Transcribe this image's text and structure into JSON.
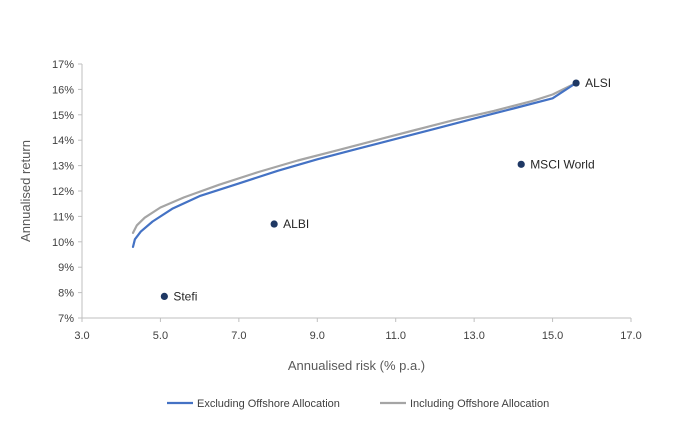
{
  "chart_data": {
    "type": "line",
    "title": "",
    "xlabel": "Annualised risk (% p.a.)",
    "ylabel": "Annualised return",
    "xlim": [
      3.0,
      17.0
    ],
    "ylim": [
      7,
      17
    ],
    "x_ticks": [
      "3.0",
      "5.0",
      "7.0",
      "9.0",
      "11.0",
      "13.0",
      "15.0",
      "17.0"
    ],
    "y_ticks": [
      "7%",
      "8%",
      "9%",
      "10%",
      "11%",
      "12%",
      "13%",
      "14%",
      "15%",
      "16%",
      "17%"
    ],
    "grid": false,
    "legend_position": "bottom",
    "series": [
      {
        "name": "Excluding Offshore Allocation",
        "color": "#4472C4",
        "points": [
          [
            4.3,
            9.8
          ],
          [
            4.35,
            10.1
          ],
          [
            4.5,
            10.4
          ],
          [
            4.8,
            10.8
          ],
          [
            5.3,
            11.3
          ],
          [
            6.0,
            11.8
          ],
          [
            7.0,
            12.3
          ],
          [
            8.0,
            12.8
          ],
          [
            9.0,
            13.25
          ],
          [
            10.0,
            13.65
          ],
          [
            11.0,
            14.05
          ],
          [
            12.0,
            14.45
          ],
          [
            13.0,
            14.85
          ],
          [
            14.0,
            15.25
          ],
          [
            15.0,
            15.65
          ],
          [
            15.6,
            16.25
          ]
        ]
      },
      {
        "name": "Including Offshore Allocation",
        "color": "#A5A5A5",
        "points": [
          [
            4.3,
            10.35
          ],
          [
            4.4,
            10.65
          ],
          [
            4.6,
            10.95
          ],
          [
            5.0,
            11.35
          ],
          [
            5.6,
            11.75
          ],
          [
            6.5,
            12.25
          ],
          [
            7.5,
            12.75
          ],
          [
            8.5,
            13.2
          ],
          [
            9.5,
            13.6
          ],
          [
            10.5,
            14.0
          ],
          [
            11.5,
            14.4
          ],
          [
            12.5,
            14.8
          ],
          [
            13.5,
            15.15
          ],
          [
            14.5,
            15.55
          ],
          [
            15.0,
            15.8
          ],
          [
            15.6,
            16.25
          ]
        ]
      }
    ],
    "points": [
      {
        "label": "ALSI",
        "x": 15.6,
        "y": 16.25
      },
      {
        "label": "MSCI World",
        "x": 14.2,
        "y": 13.05
      },
      {
        "label": "ALBI",
        "x": 7.9,
        "y": 10.7
      },
      {
        "label": "Stefi",
        "x": 5.1,
        "y": 7.85
      }
    ],
    "point_color": "#1F3864"
  }
}
